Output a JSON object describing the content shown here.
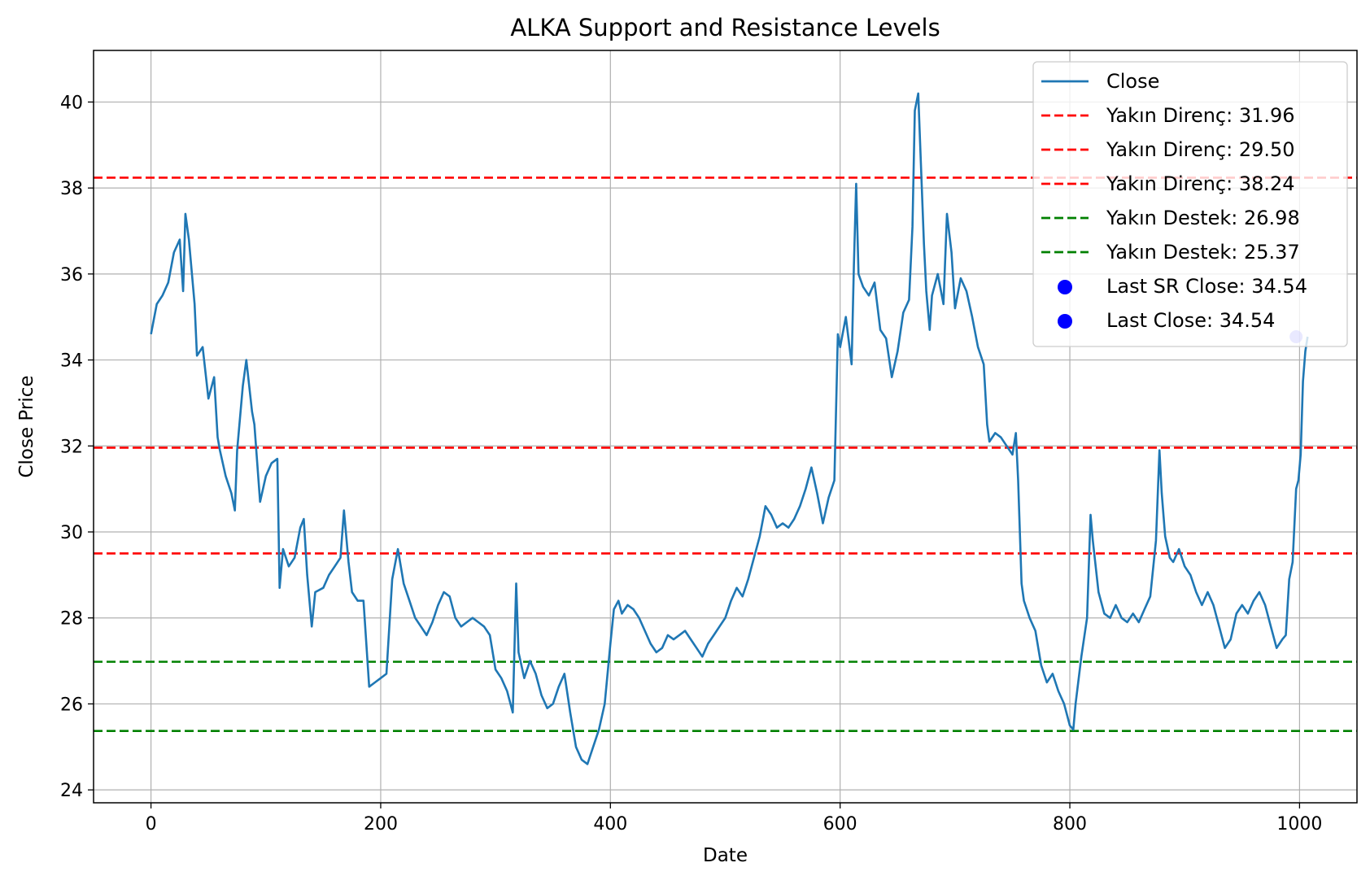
{
  "chart_data": {
    "type": "line",
    "title": "ALKA Support and Resistance Levels",
    "xlabel": "Date",
    "ylabel": "Close Price",
    "xlim": [
      -50,
      1050
    ],
    "ylim": [
      23.7,
      41.2
    ],
    "xticks": [
      0,
      200,
      400,
      600,
      800,
      1000
    ],
    "yticks": [
      24,
      26,
      28,
      30,
      32,
      34,
      36,
      38,
      40
    ],
    "grid": true,
    "legend_position": "upper right",
    "series": [
      {
        "name": "Close",
        "color": "#1f77b4",
        "points": [
          [
            0,
            34.6
          ],
          [
            5,
            35.3
          ],
          [
            10,
            35.5
          ],
          [
            15,
            35.8
          ],
          [
            20,
            36.5
          ],
          [
            25,
            36.8
          ],
          [
            28,
            35.6
          ],
          [
            30,
            37.4
          ],
          [
            33,
            36.8
          ],
          [
            38,
            35.3
          ],
          [
            40,
            34.1
          ],
          [
            45,
            34.3
          ],
          [
            50,
            33.1
          ],
          [
            55,
            33.6
          ],
          [
            58,
            32.2
          ],
          [
            60,
            31.9
          ],
          [
            65,
            31.3
          ],
          [
            70,
            30.9
          ],
          [
            73,
            30.5
          ],
          [
            75,
            31.9
          ],
          [
            80,
            33.4
          ],
          [
            83,
            34.0
          ],
          [
            88,
            32.8
          ],
          [
            90,
            32.5
          ],
          [
            95,
            30.7
          ],
          [
            100,
            31.3
          ],
          [
            105,
            31.6
          ],
          [
            110,
            31.7
          ],
          [
            112,
            28.7
          ],
          [
            115,
            29.6
          ],
          [
            120,
            29.2
          ],
          [
            125,
            29.4
          ],
          [
            130,
            30.1
          ],
          [
            133,
            30.3
          ],
          [
            136,
            29.0
          ],
          [
            140,
            27.8
          ],
          [
            143,
            28.6
          ],
          [
            150,
            28.7
          ],
          [
            155,
            29.0
          ],
          [
            160,
            29.2
          ],
          [
            165,
            29.4
          ],
          [
            168,
            30.5
          ],
          [
            172,
            29.3
          ],
          [
            175,
            28.6
          ],
          [
            180,
            28.4
          ],
          [
            185,
            28.4
          ],
          [
            190,
            26.4
          ],
          [
            195,
            26.5
          ],
          [
            200,
            26.6
          ],
          [
            205,
            26.7
          ],
          [
            210,
            28.9
          ],
          [
            215,
            29.6
          ],
          [
            220,
            28.8
          ],
          [
            225,
            28.4
          ],
          [
            230,
            28.0
          ],
          [
            235,
            27.8
          ],
          [
            240,
            27.6
          ],
          [
            245,
            27.9
          ],
          [
            250,
            28.3
          ],
          [
            255,
            28.6
          ],
          [
            260,
            28.5
          ],
          [
            265,
            28.0
          ],
          [
            270,
            27.8
          ],
          [
            275,
            27.9
          ],
          [
            280,
            28.0
          ],
          [
            285,
            27.9
          ],
          [
            290,
            27.8
          ],
          [
            295,
            27.6
          ],
          [
            300,
            26.8
          ],
          [
            305,
            26.6
          ],
          [
            310,
            26.3
          ],
          [
            315,
            25.8
          ],
          [
            318,
            28.8
          ],
          [
            320,
            27.2
          ],
          [
            325,
            26.6
          ],
          [
            330,
            27.0
          ],
          [
            335,
            26.7
          ],
          [
            340,
            26.2
          ],
          [
            345,
            25.9
          ],
          [
            350,
            26.0
          ],
          [
            355,
            26.4
          ],
          [
            360,
            26.7
          ],
          [
            365,
            25.8
          ],
          [
            370,
            25.0
          ],
          [
            375,
            24.7
          ],
          [
            380,
            24.6
          ],
          [
            385,
            25.0
          ],
          [
            390,
            25.4
          ],
          [
            395,
            26.0
          ],
          [
            400,
            27.4
          ],
          [
            403,
            28.2
          ],
          [
            407,
            28.4
          ],
          [
            410,
            28.1
          ],
          [
            415,
            28.3
          ],
          [
            420,
            28.2
          ],
          [
            425,
            28.0
          ],
          [
            430,
            27.7
          ],
          [
            435,
            27.4
          ],
          [
            440,
            27.2
          ],
          [
            445,
            27.3
          ],
          [
            450,
            27.6
          ],
          [
            455,
            27.5
          ],
          [
            460,
            27.6
          ],
          [
            465,
            27.7
          ],
          [
            470,
            27.5
          ],
          [
            475,
            27.3
          ],
          [
            480,
            27.1
          ],
          [
            485,
            27.4
          ],
          [
            490,
            27.6
          ],
          [
            495,
            27.8
          ],
          [
            500,
            28.0
          ],
          [
            505,
            28.4
          ],
          [
            510,
            28.7
          ],
          [
            515,
            28.5
          ],
          [
            520,
            28.9
          ],
          [
            525,
            29.4
          ],
          [
            530,
            29.9
          ],
          [
            535,
            30.6
          ],
          [
            540,
            30.4
          ],
          [
            545,
            30.1
          ],
          [
            550,
            30.2
          ],
          [
            555,
            30.1
          ],
          [
            560,
            30.3
          ],
          [
            565,
            30.6
          ],
          [
            570,
            31.0
          ],
          [
            575,
            31.5
          ],
          [
            580,
            30.9
          ],
          [
            585,
            30.2
          ],
          [
            590,
            30.8
          ],
          [
            595,
            31.2
          ],
          [
            598,
            34.6
          ],
          [
            600,
            34.3
          ],
          [
            605,
            35.0
          ],
          [
            610,
            33.9
          ],
          [
            612,
            36.2
          ],
          [
            614,
            38.1
          ],
          [
            616,
            36.0
          ],
          [
            620,
            35.7
          ],
          [
            625,
            35.5
          ],
          [
            630,
            35.8
          ],
          [
            635,
            34.7
          ],
          [
            640,
            34.5
          ],
          [
            645,
            33.6
          ],
          [
            650,
            34.2
          ],
          [
            655,
            35.1
          ],
          [
            660,
            35.4
          ],
          [
            663,
            37.1
          ],
          [
            665,
            39.8
          ],
          [
            668,
            40.2
          ],
          [
            670,
            38.8
          ],
          [
            673,
            36.7
          ],
          [
            675,
            35.6
          ],
          [
            678,
            34.7
          ],
          [
            680,
            35.5
          ],
          [
            685,
            36.0
          ],
          [
            690,
            35.3
          ],
          [
            693,
            37.4
          ],
          [
            697,
            36.5
          ],
          [
            700,
            35.2
          ],
          [
            705,
            35.9
          ],
          [
            710,
            35.6
          ],
          [
            715,
            35.0
          ],
          [
            720,
            34.3
          ],
          [
            725,
            33.9
          ],
          [
            728,
            32.5
          ],
          [
            730,
            32.1
          ],
          [
            735,
            32.3
          ],
          [
            740,
            32.2
          ],
          [
            745,
            32.0
          ],
          [
            750,
            31.8
          ],
          [
            753,
            32.3
          ],
          [
            755,
            31.2
          ],
          [
            758,
            28.8
          ],
          [
            760,
            28.4
          ],
          [
            765,
            28.0
          ],
          [
            770,
            27.7
          ],
          [
            775,
            26.9
          ],
          [
            780,
            26.5
          ],
          [
            785,
            26.7
          ],
          [
            790,
            26.3
          ],
          [
            795,
            26.0
          ],
          [
            800,
            25.5
          ],
          [
            803,
            25.4
          ],
          [
            805,
            26.0
          ],
          [
            810,
            27.1
          ],
          [
            815,
            28.0
          ],
          [
            818,
            30.4
          ],
          [
            820,
            29.8
          ],
          [
            825,
            28.6
          ],
          [
            830,
            28.1
          ],
          [
            835,
            28.0
          ],
          [
            840,
            28.3
          ],
          [
            845,
            28.0
          ],
          [
            850,
            27.9
          ],
          [
            855,
            28.1
          ],
          [
            860,
            27.9
          ],
          [
            865,
            28.2
          ],
          [
            870,
            28.5
          ],
          [
            875,
            29.8
          ],
          [
            878,
            31.9
          ],
          [
            880,
            30.9
          ],
          [
            883,
            29.9
          ],
          [
            887,
            29.4
          ],
          [
            890,
            29.3
          ],
          [
            895,
            29.6
          ],
          [
            900,
            29.2
          ],
          [
            905,
            29.0
          ],
          [
            910,
            28.6
          ],
          [
            915,
            28.3
          ],
          [
            920,
            28.6
          ],
          [
            925,
            28.3
          ],
          [
            930,
            27.8
          ],
          [
            935,
            27.3
          ],
          [
            940,
            27.5
          ],
          [
            945,
            28.1
          ],
          [
            950,
            28.3
          ],
          [
            955,
            28.1
          ],
          [
            960,
            28.4
          ],
          [
            965,
            28.6
          ],
          [
            970,
            28.3
          ],
          [
            975,
            27.8
          ],
          [
            980,
            27.3
          ],
          [
            985,
            27.5
          ],
          [
            988,
            27.6
          ],
          [
            991,
            28.9
          ],
          [
            994,
            29.3
          ],
          [
            997,
            31.0
          ],
          [
            999,
            31.2
          ],
          [
            1001,
            31.8
          ],
          [
            1003,
            33.5
          ],
          [
            1005,
            34.2
          ],
          [
            1007,
            34.54
          ]
        ]
      }
    ],
    "hlines": [
      {
        "label": "Yakın Direnç: 31.96",
        "y": 31.96,
        "color": "#ff0000"
      },
      {
        "label": "Yakın Direnç: 29.50",
        "y": 29.5,
        "color": "#ff0000"
      },
      {
        "label": "Yakın Direnç: 38.24",
        "y": 38.24,
        "color": "#ff0000"
      },
      {
        "label": "Yakın Destek: 26.98",
        "y": 26.98,
        "color": "#008000"
      },
      {
        "label": "Yakın Destek: 25.37",
        "y": 25.37,
        "color": "#008000"
      }
    ],
    "markers": [
      {
        "label": "Last SR Close: 34.54",
        "x": 997,
        "y": 34.54,
        "color": "#0000ff"
      },
      {
        "label": "Last Close: 34.54",
        "x": 997,
        "y": 34.54,
        "color": "#0000ff"
      }
    ]
  }
}
